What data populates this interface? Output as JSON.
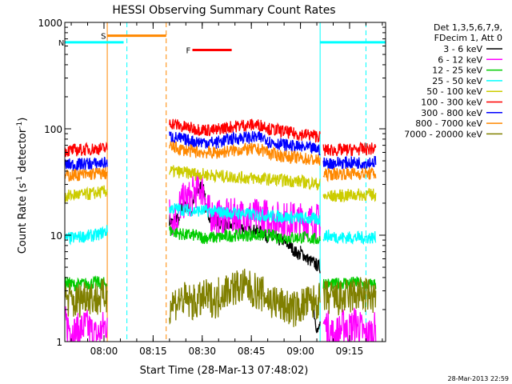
{
  "chart_data": {
    "type": "line",
    "title": "HESSI Observing Summary Count Rates",
    "xlabel": "Start Time (28-Mar-13 07:48:02)",
    "ylabel_pre": "Count Rate (s",
    "ylabel_sup1": "-1",
    "ylabel_mid": " detector",
    "ylabel_sup2": "-1",
    "ylabel_post": ")",
    "y_scale": "log",
    "ylim": [
      1,
      1000
    ],
    "xlim": [
      "07:48:02",
      "09:26:00"
    ],
    "x_ticks": [
      "08:00",
      "08:15",
      "08:30",
      "08:45",
      "09:00",
      "09:15"
    ],
    "y_ticks": [
      "1",
      "10",
      "100",
      "1000"
    ],
    "legend_header": [
      "Det 1,3,5,6,7,9,",
      "FDecim 1, Att 0"
    ],
    "legend_position": "right",
    "timestamp": "28-Mar-2013 22:59",
    "series": [
      {
        "name": "3 - 6 keV",
        "color": "#000000",
        "segments": [
          {
            "start": "08:20",
            "end": "08:23",
            "values": [
              14,
              13,
              15,
              13
            ]
          },
          {
            "start": "08:23",
            "end": "08:27",
            "values": [
              17,
              19,
              18,
              17
            ]
          },
          {
            "start": "08:27",
            "end": "08:31",
            "values": [
              20,
              25,
              29,
              24
            ]
          },
          {
            "start": "08:31",
            "end": "08:35",
            "values": [
              18,
              15,
              14,
              13
            ]
          },
          {
            "start": "08:35",
            "end": "08:41",
            "values": [
              13,
              12.5,
              12,
              12.5
            ]
          },
          {
            "start": "08:41",
            "end": "08:49",
            "values": [
              12,
              11.5,
              11,
              10.5
            ]
          },
          {
            "start": "08:49",
            "end": "08:55",
            "values": [
              10,
              9.5,
              9,
              9
            ]
          },
          {
            "start": "08:55",
            "end": "09:00",
            "values": [
              8.5,
              8,
              7,
              6.5
            ]
          },
          {
            "start": "09:00",
            "end": "09:06",
            "values": [
              7,
              6,
              5.5,
              5
            ]
          },
          {
            "start": "09:04",
            "end": "09:06",
            "values": [
              2,
              1.5,
              1.2,
              1.5
            ]
          }
        ]
      },
      {
        "name": "6 - 12 keV",
        "color": "#ff00ff",
        "segments": [
          {
            "start": "07:48",
            "end": "08:01",
            "values": [
              1.5,
              1.2,
              1.4,
              1.1,
              1.5
            ]
          },
          {
            "start": "08:20",
            "end": "08:23",
            "values": [
              16,
              14,
              15,
              15
            ]
          },
          {
            "start": "08:23",
            "end": "08:27",
            "values": [
              19,
              21,
              22,
              22
            ]
          },
          {
            "start": "08:27",
            "end": "08:31",
            "values": [
              24,
              27,
              28,
              25
            ]
          },
          {
            "start": "08:31",
            "end": "08:35",
            "values": [
              18,
              16,
              15,
              14.5
            ]
          },
          {
            "start": "08:35",
            "end": "08:50",
            "values": [
              14.5,
              15,
              15,
              15,
              15
            ]
          },
          {
            "start": "08:50",
            "end": "09:06",
            "values": [
              14.5,
              14,
              14,
              13.5,
              13.5
            ]
          },
          {
            "start": "09:07",
            "end": "09:14",
            "values": [
              1.5,
              1.1,
              1.5
            ]
          },
          {
            "start": "09:14",
            "end": "09:23",
            "values": [
              1.2,
              1.5,
              1.1,
              1.3
            ]
          }
        ]
      },
      {
        "name": "12 - 25 keV",
        "color": "#00cc00",
        "segments": [
          {
            "start": "07:48",
            "end": "08:01",
            "values": [
              3.6,
              3.4,
              3.5,
              3.6,
              3.5
            ]
          },
          {
            "start": "08:20",
            "end": "08:30",
            "values": [
              11,
              10.5,
              10,
              10,
              9.5
            ]
          },
          {
            "start": "08:30",
            "end": "08:50",
            "values": [
              9.5,
              9.5,
              10,
              10,
              10
            ]
          },
          {
            "start": "08:50",
            "end": "09:06",
            "values": [
              10,
              9.5,
              9.5,
              9.5,
              9
            ]
          },
          {
            "start": "09:07",
            "end": "09:14",
            "values": [
              3.6,
              3.4,
              3.5,
              3.6
            ]
          },
          {
            "start": "09:14",
            "end": "09:23",
            "values": [
              3.5,
              3.6,
              3.4,
              3.5
            ]
          }
        ]
      },
      {
        "name": "25 - 50 keV",
        "color": "#00ffff",
        "segments": [
          {
            "start": "07:48",
            "end": "08:01",
            "values": [
              9.2,
              9.5,
              9.8,
              10,
              11
            ]
          },
          {
            "start": "08:20",
            "end": "08:35",
            "values": [
              18,
              17.5,
              17,
              17,
              16.5
            ]
          },
          {
            "start": "08:35",
            "end": "09:06",
            "values": [
              16.5,
              16,
              15.5,
              15,
              14.5,
              14
            ]
          },
          {
            "start": "09:07",
            "end": "09:23",
            "values": [
              10,
              9.5,
              9.5,
              9.5
            ]
          }
        ]
      },
      {
        "name": "50 - 100 keV",
        "color": "#cccc00",
        "segments": [
          {
            "start": "07:48",
            "end": "08:01",
            "values": [
              23,
              24,
              24,
              25,
              26
            ]
          },
          {
            "start": "08:20",
            "end": "08:35",
            "values": [
              40,
              39,
              38,
              37,
              36.5
            ]
          },
          {
            "start": "08:35",
            "end": "09:06",
            "values": [
              36,
              35,
              34,
              33,
              32,
              30
            ]
          },
          {
            "start": "09:07",
            "end": "09:23",
            "values": [
              23,
              23.5,
              24,
              24
            ]
          }
        ]
      },
      {
        "name": "100 - 300 keV",
        "color": "#ff0000",
        "segments": [
          {
            "start": "07:48",
            "end": "08:01",
            "values": [
              62,
              63,
              64,
              65,
              65
            ]
          },
          {
            "start": "08:20",
            "end": "08:35",
            "values": [
              115,
              105,
              100,
              98,
              96
            ]
          },
          {
            "start": "08:35",
            "end": "08:50",
            "values": [
              100,
              104,
              108,
              109,
              106
            ]
          },
          {
            "start": "08:50",
            "end": "09:06",
            "values": [
              100,
              96,
              90,
              88,
              85
            ]
          },
          {
            "start": "09:07",
            "end": "09:23",
            "values": [
              63,
              63,
              64,
              65
            ]
          }
        ]
      },
      {
        "name": "300 - 800 keV",
        "color": "#0000ff",
        "segments": [
          {
            "start": "07:48",
            "end": "08:01",
            "values": [
              46,
              46,
              47,
              47,
              48
            ]
          },
          {
            "start": "08:20",
            "end": "08:35",
            "values": [
              85,
              80,
              76,
              75,
              74
            ]
          },
          {
            "start": "08:35",
            "end": "08:50",
            "values": [
              76,
              80,
              83,
              83,
              81
            ]
          },
          {
            "start": "08:50",
            "end": "09:06",
            "values": [
              76,
              72,
              68,
              66,
              64
            ]
          },
          {
            "start": "09:07",
            "end": "09:23",
            "values": [
              47,
              48,
              48,
              49
            ]
          }
        ]
      },
      {
        "name": "800 - 7000 keV",
        "color": "#ff8800",
        "segments": [
          {
            "start": "07:48",
            "end": "08:01",
            "values": [
              36,
              37,
              37,
              38,
              38
            ]
          },
          {
            "start": "08:20",
            "end": "08:35",
            "values": [
              68,
              64,
              61,
              60,
              59
            ]
          },
          {
            "start": "08:35",
            "end": "08:50",
            "values": [
              60,
              62,
              64,
              64,
              62
            ]
          },
          {
            "start": "08:50",
            "end": "09:06",
            "values": [
              59,
              56,
              54,
              52,
              50
            ]
          },
          {
            "start": "09:07",
            "end": "09:23",
            "values": [
              37,
              38,
              38,
              38
            ]
          }
        ]
      },
      {
        "name": "7000 - 20000 keV",
        "color": "#808000",
        "segments": [
          {
            "start": "07:48",
            "end": "08:01",
            "values": [
              2.6,
              2.3,
              2.8,
              2.5,
              2.7
            ]
          },
          {
            "start": "08:20",
            "end": "08:35",
            "values": [
              2.2,
              2.5,
              2.3,
              2.6,
              2.4
            ]
          },
          {
            "start": "08:35",
            "end": "08:50",
            "values": [
              2.8,
              3.2,
              3.3,
              3.0,
              2.6
            ]
          },
          {
            "start": "08:50",
            "end": "09:06",
            "values": [
              2.5,
              2.2,
              2.0,
              2.3,
              2.4
            ]
          },
          {
            "start": "09:07",
            "end": "09:23",
            "values": [
              2.6,
              2.5,
              2.8,
              2.6
            ]
          }
        ]
      }
    ],
    "vertical_lines": [
      {
        "time": "08:07",
        "color": "#00ffff",
        "dashed": true
      },
      {
        "time": "08:19",
        "color": "#ff8800",
        "dashed": true
      },
      {
        "time": "09:20",
        "color": "#00ffff",
        "dashed": true
      },
      {
        "time": "08:01",
        "color": "#ff8800",
        "dashed": false
      },
      {
        "time": "09:06",
        "color": "#00ffff",
        "dashed": false
      }
    ],
    "annotations": [
      {
        "label": "S",
        "color": "#ff8800",
        "start": "08:01",
        "end": "08:19",
        "level": 750
      },
      {
        "label": "N",
        "color": "#00ffff",
        "start": "07:48",
        "end": "08:06",
        "level": 650
      },
      {
        "label": "F",
        "color": "#ff0000",
        "start": "08:27",
        "end": "08:39",
        "level": 550
      }
    ],
    "n_bar_right": {
      "color": "#00ffff",
      "start": "09:06",
      "end": "09:26",
      "level": 650
    }
  }
}
